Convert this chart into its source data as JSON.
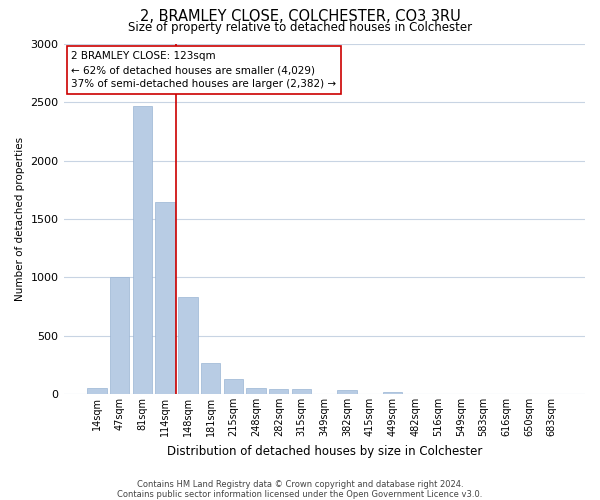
{
  "title": "2, BRAMLEY CLOSE, COLCHESTER, CO3 3RU",
  "subtitle": "Size of property relative to detached houses in Colchester",
  "xlabel": "Distribution of detached houses by size in Colchester",
  "ylabel": "Number of detached properties",
  "bar_labels": [
    "14sqm",
    "47sqm",
    "81sqm",
    "114sqm",
    "148sqm",
    "181sqm",
    "215sqm",
    "248sqm",
    "282sqm",
    "315sqm",
    "349sqm",
    "382sqm",
    "415sqm",
    "449sqm",
    "482sqm",
    "516sqm",
    "549sqm",
    "583sqm",
    "616sqm",
    "650sqm",
    "683sqm"
  ],
  "bar_values": [
    55,
    1000,
    2470,
    1650,
    835,
    270,
    130,
    55,
    45,
    40,
    0,
    35,
    0,
    20,
    0,
    0,
    0,
    0,
    0,
    0,
    0
  ],
  "bar_color": "#b8cce4",
  "bar_edgecolor": "#9ab5d4",
  "vline_color": "#cc0000",
  "vline_x_index": 3,
  "ylim": [
    0,
    3000
  ],
  "yticks": [
    0,
    500,
    1000,
    1500,
    2000,
    2500,
    3000
  ],
  "annotation_title": "2 BRAMLEY CLOSE: 123sqm",
  "annotation_line1": "← 62% of detached houses are smaller (4,029)",
  "annotation_line2": "37% of semi-detached houses are larger (2,382) →",
  "annotation_box_color": "#ffffff",
  "annotation_box_edgecolor": "#cc0000",
  "footer_line1": "Contains HM Land Registry data © Crown copyright and database right 2024.",
  "footer_line2": "Contains public sector information licensed under the Open Government Licence v3.0.",
  "bg_color": "#ffffff",
  "grid_color": "#c8d4e3",
  "title_fontsize": 10.5,
  "subtitle_fontsize": 8.5,
  "ylabel_fontsize": 7.5,
  "xlabel_fontsize": 8.5,
  "ytick_fontsize": 8,
  "xtick_fontsize": 7,
  "annotation_fontsize": 7.5,
  "footer_fontsize": 6
}
